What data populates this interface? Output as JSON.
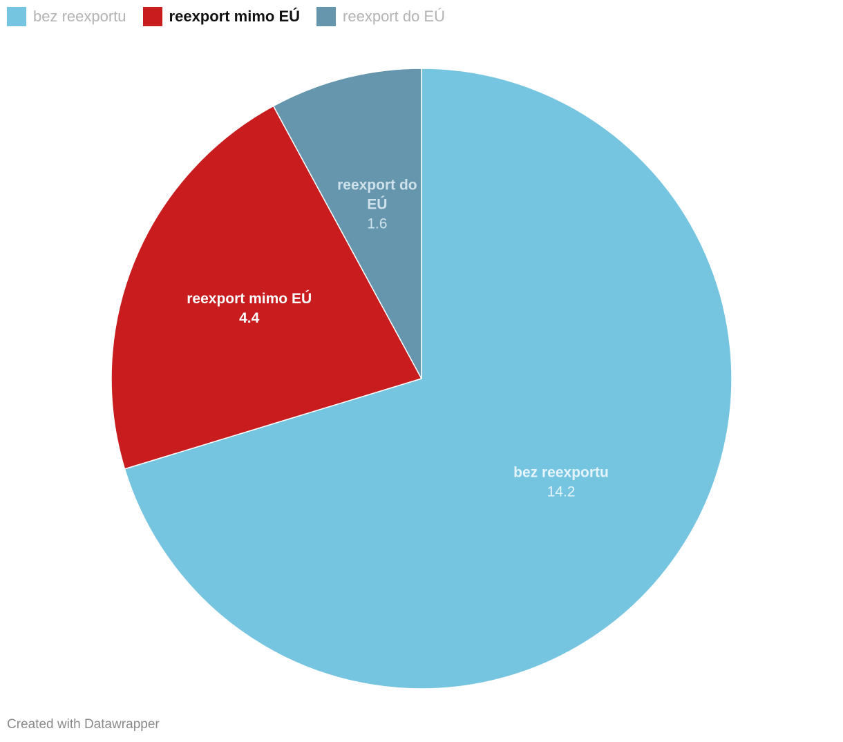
{
  "chart_data": {
    "type": "pie",
    "legend_position": "top-left",
    "slices": [
      {
        "label": "bez reexportu",
        "value": 14.2,
        "value_label": "14.2",
        "label_lines": [
          "bez reexportu"
        ],
        "color": "#75c4e0",
        "text_color": "#e4f4fa",
        "highlight": false
      },
      {
        "label": "reexport mimo EÚ",
        "value": 4.4,
        "value_label": "4.4",
        "label_lines": [
          "reexport mimo EÚ"
        ],
        "color": "#c81c1e",
        "text_color": "#ffffff",
        "highlight": true
      },
      {
        "label": "reexport do EÚ",
        "value": 1.6,
        "value_label": "1.6",
        "label_lines": [
          "reexport do",
          "EÚ"
        ],
        "color": "#6596ad",
        "text_color": "#cfe1ea",
        "highlight": false
      }
    ]
  },
  "footer": {
    "credit": "Created with Datawrapper"
  }
}
